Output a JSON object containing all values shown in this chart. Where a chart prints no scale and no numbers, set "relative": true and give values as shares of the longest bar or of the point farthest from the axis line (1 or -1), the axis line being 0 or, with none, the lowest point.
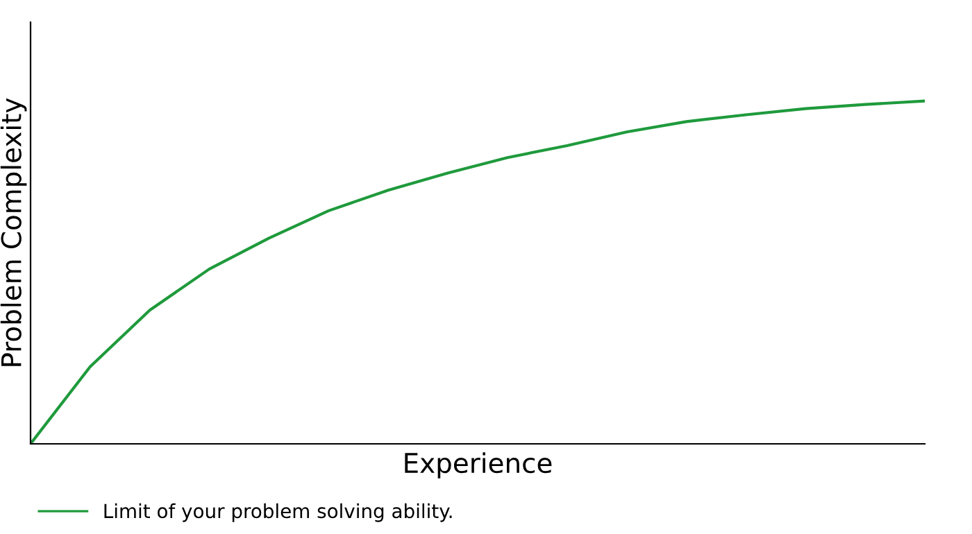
{
  "chart_data": {
    "type": "line",
    "relative": true,
    "xlabel": "Experience",
    "ylabel": "Problem Complexity",
    "categories": [
      null,
      null,
      null,
      null,
      null,
      null,
      null,
      null,
      null,
      null,
      null,
      null,
      null,
      null,
      null,
      null
    ],
    "series": [
      {
        "name": "Limit of your problem solving ability.",
        "color": "#1f9a3c",
        "values": [
          0,
          0.225,
          0.39,
          0.51,
          0.6,
          0.68,
          0.74,
          0.79,
          0.835,
          0.87,
          0.91,
          0.94,
          0.96,
          0.978,
          0.99,
          1
        ]
      }
    ],
    "legend": "bottom",
    "grid": false,
    "marker": "none",
    "line_style": "solid"
  }
}
